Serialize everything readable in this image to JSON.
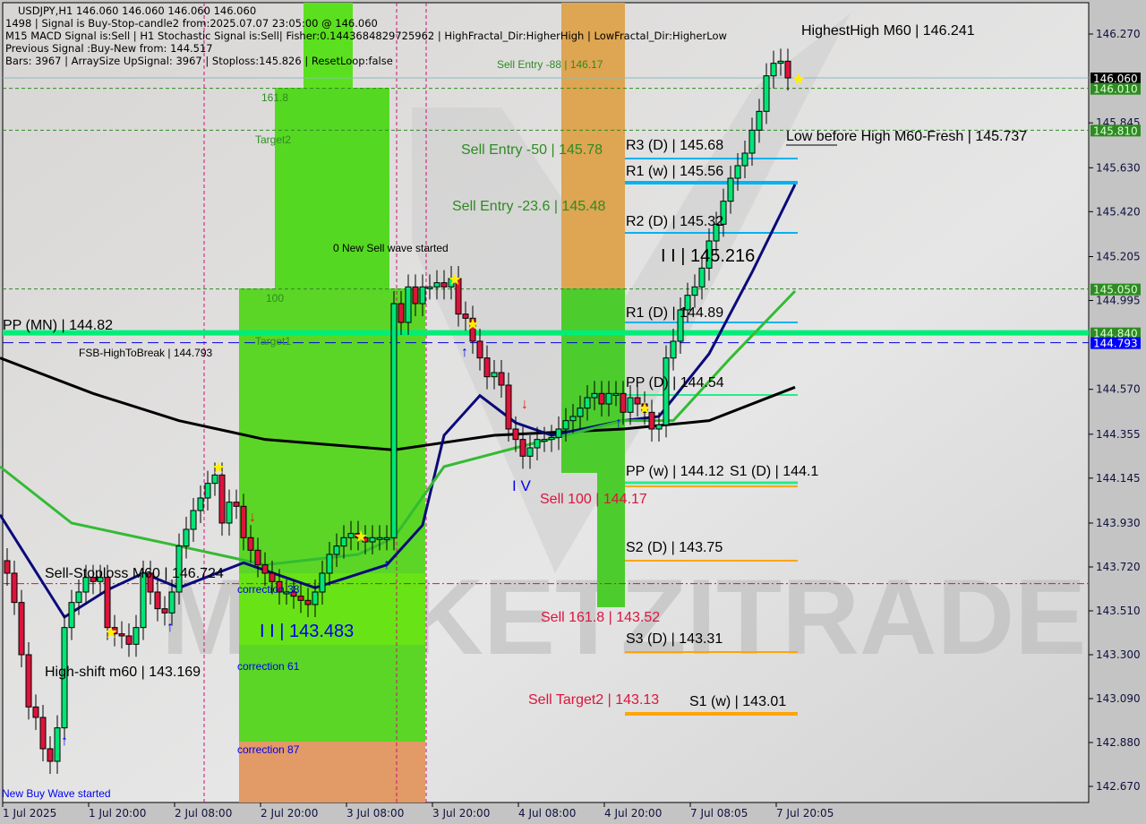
{
  "header": {
    "line1": "USDJPY,H1  146.060 146.060 146.060 146.060",
    "line2": "1498 | Signal is Buy-Stop-candle2 from:2025.07.07 23:05:00 @ 146.060",
    "line3": "M15 MACD Signal is:Sell | H1 Stochastic Signal is:Sell| Fisher:0.1443684829725962 | HighFractal_Dir:HigherHigh | LowFractal_Dir:HigherLow",
    "line4": "Previous Signal :Buy-New from: 144.517",
    "line5": "Bars: 3967 | ArraySize UpSignal: 3967 | Stoploss:145.826 | ResetLoop:false"
  },
  "labels": {
    "highest_high": "HighestHigh    M60 | 146.241",
    "low_before_high": "Low before High   M60-Fresh | 145.737",
    "sell_entry_88": "Sell Entry -88 | 146.17",
    "sell_entry_50": "Sell Entry -50 | 145.78",
    "sell_entry_23": "Sell Entry -23.6 | 145.48",
    "fib_161": "161.8",
    "target2": "Target2",
    "fib_100": "100",
    "target1": "Target1",
    "new_sell_wave": "0 New Sell wave started",
    "pp_mn": "PP (MN) | 144.82",
    "fsb_high": "FSB-HighToBreak | 144.793",
    "r3_d": "R3 (D) | 145.68",
    "r1_w": "R1 (w) | 145.56",
    "r2_d": "R2 (D) | 145.32",
    "wave_ii": "I I | 145.216",
    "r1_d": "R1 (D) | 144.89",
    "pp_d": "PP (D) | 144.54",
    "pp_w": "PP (w) | 144.12",
    "s1_d": "S1 (D) | 144.1",
    "sell_100": "Sell 100 | 144.17",
    "wave_iv": "I V",
    "s2_d": "S2 (D) | 143.75",
    "sell_161": "Sell 161.8 | 143.52",
    "s3_d": "S3 (D) | 143.31",
    "sell_target2": "Sell Target2 | 143.13",
    "s1_w": "S1 (w) | 143.01",
    "sell_stoploss": "Sell-Stoploss M60 | 146.724",
    "correction_38": "correction 38",
    "wave_ii_low": "I I | 143.483",
    "correction_61": "correction 61",
    "high_shift": "High-shift m60 | 143.169",
    "correction_87": "correction 87",
    "new_buy_wave": "New Buy Wave started",
    "watermark": "MARKETZITRADE"
  },
  "price_tags": [
    {
      "value": "146.060",
      "bg": "#000000",
      "fg": "#ffffff"
    },
    {
      "value": "146.010",
      "bg": "#2e8b22",
      "fg": "#d8ffd0"
    },
    {
      "value": "145.810",
      "bg": "#2e8b22",
      "fg": "#d8ffd0"
    },
    {
      "value": "145.050",
      "bg": "#2e8b22",
      "fg": "#d8ffd0"
    },
    {
      "value": "144.840",
      "bg": "#2e8b22",
      "fg": "#d8ffd0"
    },
    {
      "value": "144.793",
      "bg": "#0000ff",
      "fg": "#ffffff"
    }
  ],
  "chart_data": {
    "type": "candlestick",
    "symbol": "USDJPY",
    "timeframe": "H1",
    "ylim": [
      142.6,
      146.4
    ],
    "y_ticks": [
      "146.270",
      "145.845",
      "145.630",
      "145.420",
      "145.205",
      "144.995",
      "144.570",
      "144.355",
      "144.145",
      "143.930",
      "143.720",
      "143.510",
      "143.300",
      "143.090",
      "142.880",
      "142.670"
    ],
    "x_ticks": [
      "1 Jul 2025",
      "1 Jul 20:00",
      "2 Jul 08:00",
      "2 Jul 20:00",
      "3 Jul 08:00",
      "3 Jul 20:00",
      "4 Jul 08:00",
      "4 Jul 20:00",
      "7 Jul 08:05",
      "7 Jul 20:05"
    ],
    "first_open": 143.75,
    "closes": [
      143.69,
      143.55,
      143.3,
      143.05,
      143.0,
      142.85,
      142.79,
      142.95,
      143.43,
      143.55,
      143.6,
      143.67,
      143.65,
      143.67,
      143.43,
      143.4,
      143.39,
      143.35,
      143.43,
      143.69,
      143.6,
      143.52,
      143.5,
      143.6,
      143.82,
      143.9,
      143.99,
      144.05,
      144.12,
      144.16,
      143.93,
      144.03,
      144.01,
      143.86,
      143.8,
      143.73,
      143.69,
      143.65,
      143.6,
      143.6,
      143.58,
      143.56,
      143.54,
      143.6,
      143.69,
      143.78,
      143.82,
      143.86,
      143.88,
      143.86,
      143.84,
      143.86,
      143.86,
      143.86,
      144.98,
      144.89,
      145.06,
      144.98,
      145.06,
      145.06,
      145.08,
      145.06,
      145.1,
      144.93,
      144.91,
      144.8,
      144.72,
      144.63,
      144.65,
      144.59,
      144.38,
      144.33,
      144.25,
      144.29,
      144.33,
      144.33,
      144.34,
      144.38,
      144.42,
      144.44,
      144.48,
      144.53,
      144.55,
      144.5,
      144.55,
      144.55,
      144.46,
      144.53,
      144.5,
      144.46,
      144.38,
      144.4,
      144.72,
      144.8,
      144.95,
      145.02,
      145.06,
      145.15,
      145.28,
      145.36,
      145.47,
      145.58,
      145.64,
      145.7,
      145.81,
      145.9,
      146.07,
      146.13,
      146.14,
      146.06
    ],
    "moving_averages": [
      {
        "color": "#000000",
        "points": [
          [
            -1,
            144.72
          ],
          [
            12,
            144.55
          ],
          [
            24,
            144.42
          ],
          [
            36,
            144.33
          ],
          [
            54,
            144.28
          ],
          [
            68,
            144.35
          ],
          [
            86,
            144.38
          ],
          [
            98,
            144.42
          ],
          [
            110,
            144.58
          ]
        ]
      },
      {
        "color": "#0a0a7a",
        "points": [
          [
            -1,
            143.97
          ],
          [
            8,
            143.48
          ],
          [
            14,
            143.61
          ],
          [
            19,
            143.69
          ],
          [
            24,
            143.62
          ],
          [
            33,
            143.74
          ],
          [
            43,
            143.62
          ],
          [
            53,
            143.73
          ],
          [
            58,
            143.92
          ],
          [
            61,
            144.35
          ],
          [
            66,
            144.54
          ],
          [
            71,
            144.41
          ],
          [
            76,
            144.35
          ],
          [
            86,
            144.42
          ],
          [
            91,
            144.44
          ],
          [
            98,
            144.74
          ],
          [
            104,
            145.13
          ],
          [
            110,
            145.55
          ]
        ]
      },
      {
        "color": "#33bb33",
        "points": [
          [
            -1,
            144.2
          ],
          [
            9,
            143.93
          ],
          [
            24,
            143.82
          ],
          [
            36,
            143.73
          ],
          [
            49,
            143.78
          ],
          [
            54,
            143.86
          ],
          [
            61,
            144.2
          ],
          [
            71,
            144.29
          ],
          [
            86,
            144.42
          ],
          [
            93,
            144.42
          ],
          [
            101,
            144.72
          ],
          [
            110,
            145.04
          ]
        ]
      }
    ],
    "levels": [
      {
        "price": 146.01,
        "style": "dashed",
        "color": "#2e8b22"
      },
      {
        "price": 145.81,
        "style": "dashed",
        "color": "#2e8b22"
      },
      {
        "price": 145.05,
        "style": "dashed",
        "color": "#2e8b22"
      },
      {
        "price": 144.84,
        "style": "solid-thick",
        "color": "#00ee77"
      },
      {
        "price": 144.793,
        "style": "dashed",
        "color": "#0000dd"
      },
      {
        "price": 143.64,
        "style": "dashdot",
        "color": "#cc2222"
      },
      {
        "price": 146.06,
        "style": "solid",
        "color": "#88bbbb"
      }
    ],
    "colors": {
      "bull": "#00e676",
      "bear": "#dc143c",
      "pivot_r": "#00b4f0",
      "pivot_s": "#ffa500",
      "zone_green": "#55dd22",
      "zone_orange": "#e0a050"
    }
  }
}
